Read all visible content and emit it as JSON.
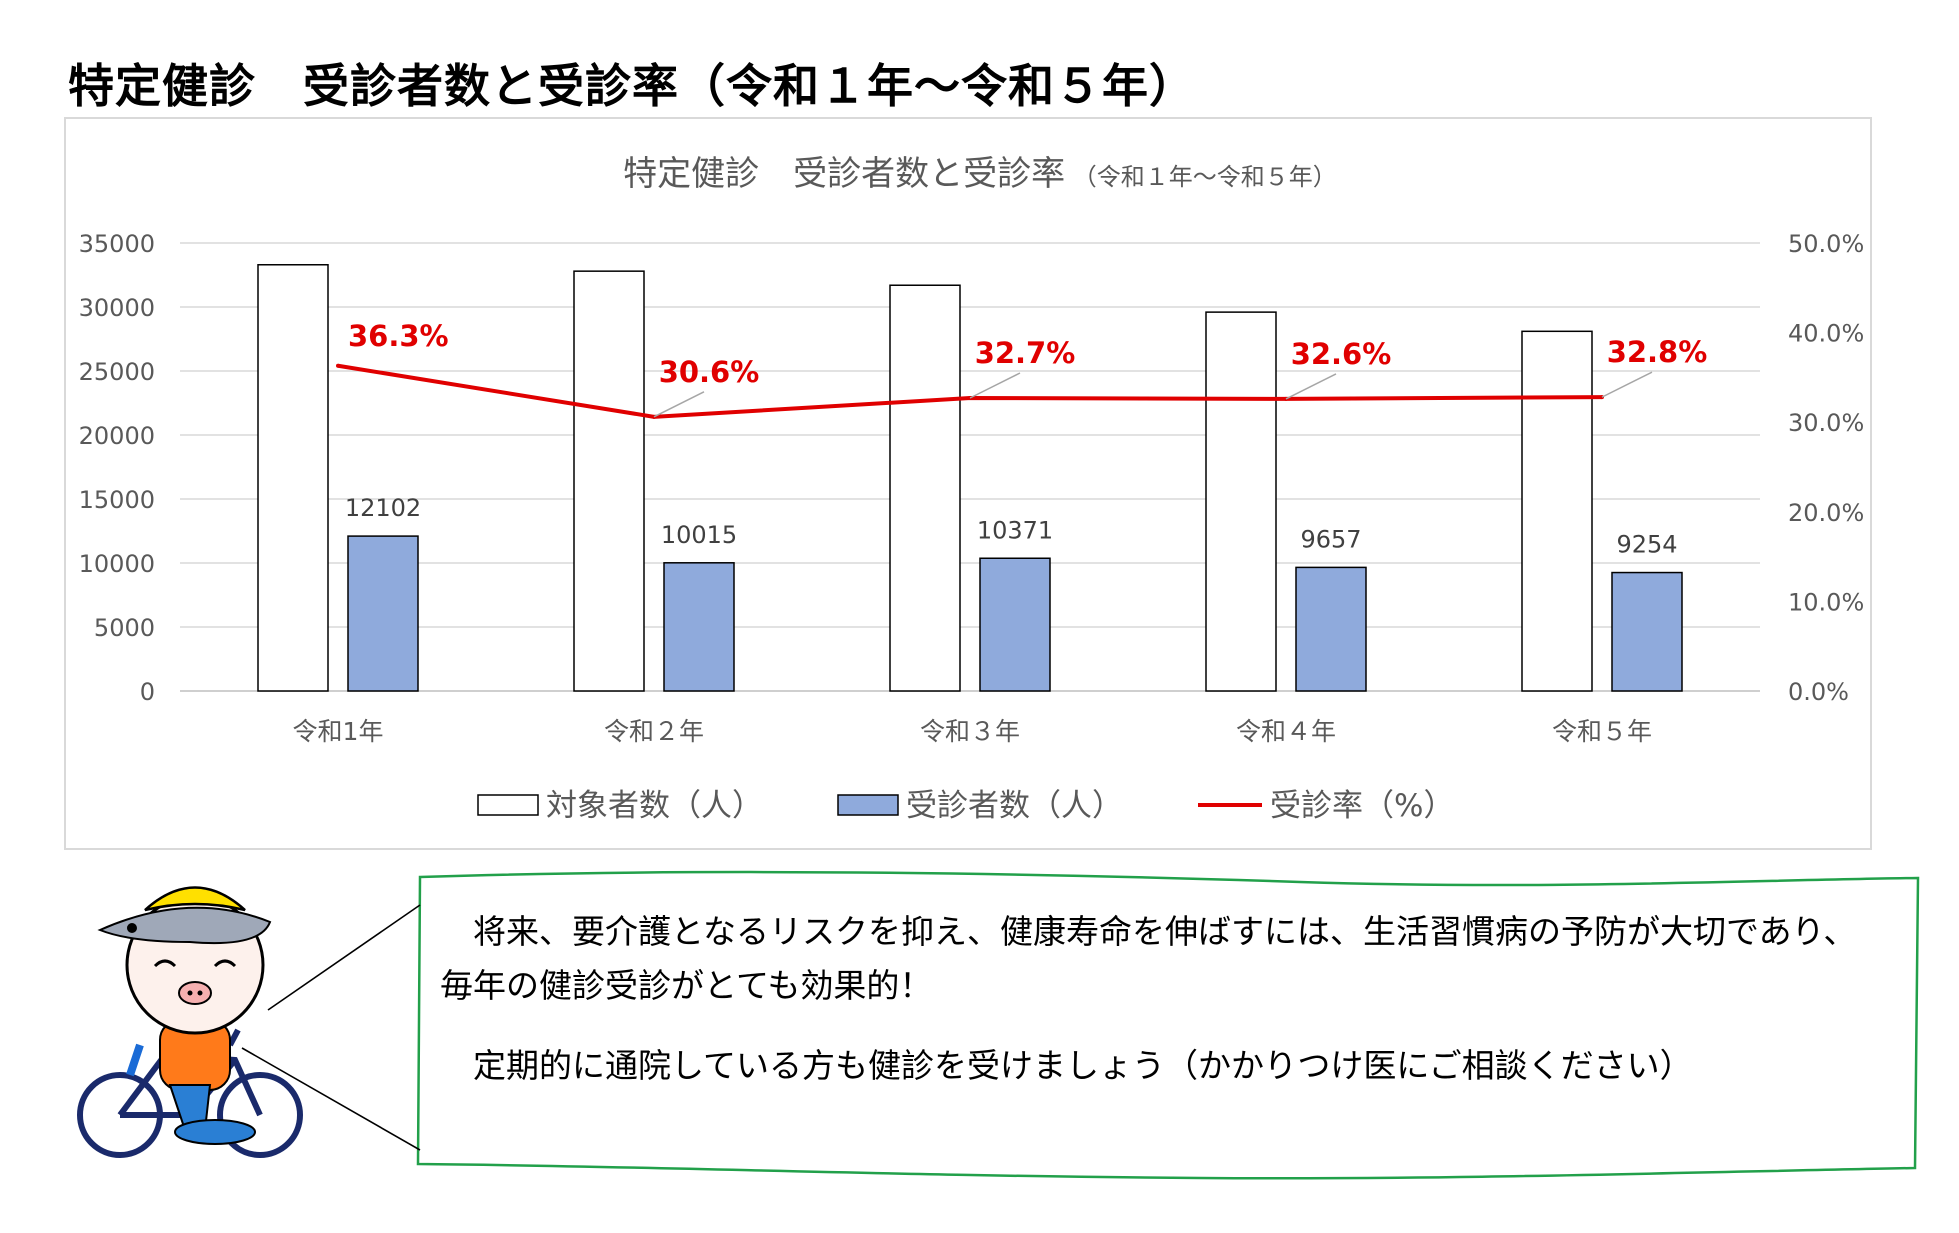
{
  "page_title": "特定健診　受診者数と受診率（令和１年～令和５年）",
  "chart_data": {
    "type": "bar",
    "title": "特定健診　受診者数と受診率",
    "subtitle": "（令和１年～令和５年）",
    "categories": [
      "令和1年",
      "令和２年",
      "令和３年",
      "令和４年",
      "令和５年"
    ],
    "series": [
      {
        "name": "対象者数（人）",
        "type": "bar",
        "axis": "left",
        "color": "#ffffff",
        "stroke": "#000000",
        "values": [
          33300,
          32800,
          31700,
          29600,
          28100
        ],
        "labels": [
          "",
          "",
          "",
          "",
          ""
        ]
      },
      {
        "name": "受診者数（人）",
        "type": "bar",
        "axis": "left",
        "color": "#8faadc",
        "stroke": "#000000",
        "values": [
          12102,
          10015,
          10371,
          9657,
          9254
        ],
        "labels": [
          "12102",
          "10015",
          "10371",
          "9657",
          "9254"
        ]
      },
      {
        "name": "受診率（%）",
        "type": "line",
        "axis": "right",
        "color": "#e00000",
        "values": [
          36.3,
          30.6,
          32.7,
          32.6,
          32.8
        ],
        "labels": [
          "36.3%",
          "30.6%",
          "32.7%",
          "32.6%",
          "32.8%"
        ]
      }
    ],
    "ylim": [
      0,
      35000
    ],
    "yticks": [
      "0",
      "5000",
      "10000",
      "15000",
      "20000",
      "25000",
      "30000",
      "35000"
    ],
    "y2lim": [
      0,
      50
    ],
    "y2ticks": [
      "0.0%",
      "10.0%",
      "20.0%",
      "30.0%",
      "40.0%",
      "50.0%"
    ],
    "grid": true,
    "legend_position": "bottom"
  },
  "message": {
    "paragraph1": "　将来、要介護となるリスクを抑え、健康寿命を伸ばすには、生活習慣病の予防が大切であり、毎年の健診受診がとても効果的！",
    "paragraph2": "　定期的に通院している方も健診を受けましょう（かかりつけ医にご相談ください）"
  }
}
